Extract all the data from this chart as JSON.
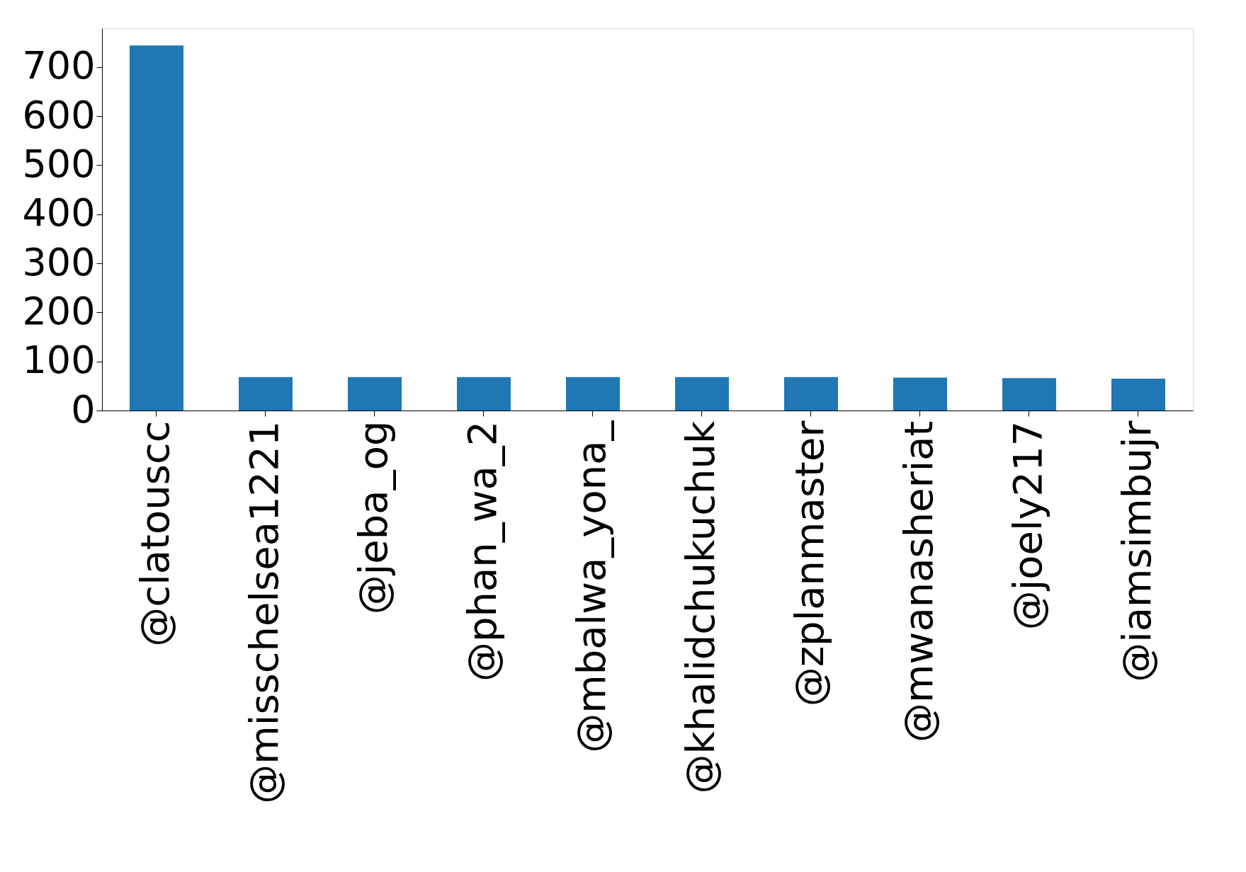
{
  "chart_data": {
    "type": "bar",
    "categories": [
      "@clatouscc",
      "@misschelsea1221",
      "@jeba_og",
      "@phan_wa_2",
      "@mbalwa_yona_",
      "@khalidchukuchuk",
      "@zplanmaster",
      "@mwanasheriat",
      "@joely217",
      "@iamsimbujr"
    ],
    "values": [
      744,
      68,
      68,
      68,
      68,
      68,
      68,
      67,
      66,
      65
    ],
    "color": "#1f77b4",
    "ylim": [
      0,
      779
    ],
    "yticks": [
      0,
      100,
      200,
      300,
      400,
      500,
      600,
      700
    ],
    "grid": false
  }
}
